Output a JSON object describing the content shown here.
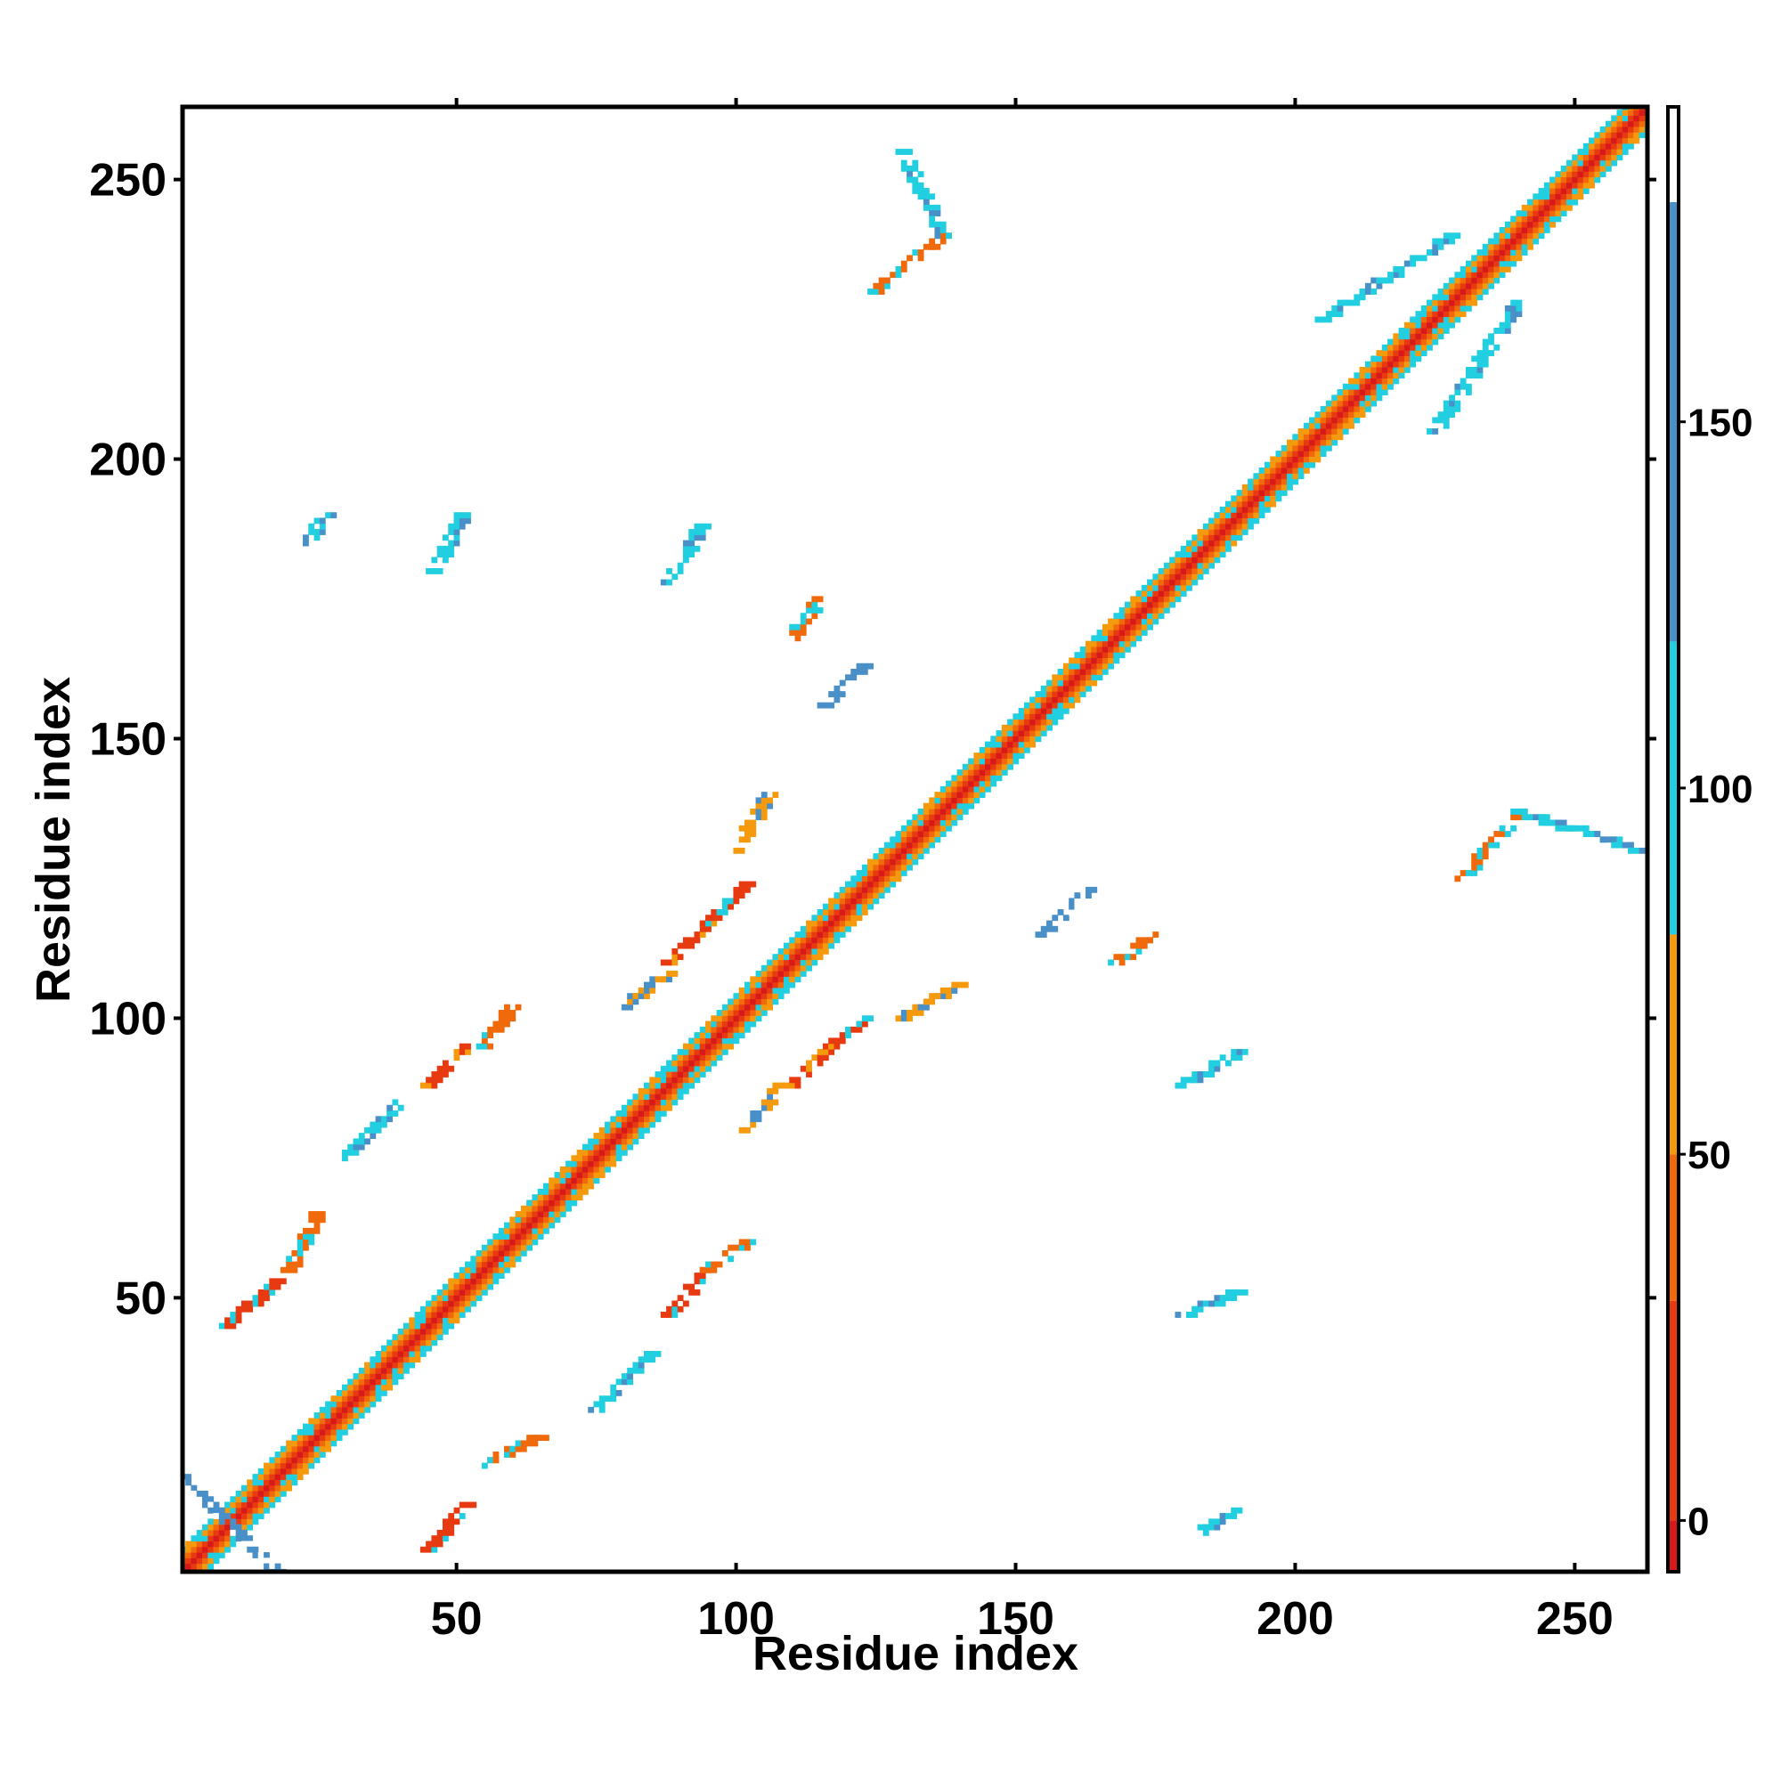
{
  "chart_data": {
    "type": "heatmap",
    "title": "",
    "xlabel": "Residue index",
    "ylabel": "Residue index",
    "xlim": [
      1,
      263
    ],
    "ylim": [
      1,
      263
    ],
    "xticks": [
      50,
      100,
      150,
      200,
      250
    ],
    "yticks": [
      50,
      100,
      150,
      200,
      250
    ],
    "grid": false,
    "legend": "none",
    "colorbar": {
      "range": [
        -7,
        193
      ],
      "ticks": [
        0,
        50,
        100,
        150
      ],
      "bands": [
        {
          "from": -7,
          "to": 0,
          "color": "#d7191c"
        },
        {
          "from": 0,
          "to": 30,
          "color": "#e83a10"
        },
        {
          "from": 30,
          "to": 50,
          "color": "#f06a0b"
        },
        {
          "from": 50,
          "to": 80,
          "color": "#f49a0c"
        },
        {
          "from": 80,
          "to": 120,
          "color": "#22cfe0"
        },
        {
          "from": 120,
          "to": 180,
          "color": "#4a90c8"
        },
        {
          "from": 180,
          "to": 193,
          "color": "#ffffff"
        }
      ]
    },
    "description_cells": {
      "diagonal_band_halfwidth": 4,
      "off_diagonal_segments": [
        {
          "x1": 45,
          "y1": 5,
          "x2": 52,
          "y2": 13,
          "value": 20
        },
        {
          "x1": 55,
          "y1": 20,
          "x2": 65,
          "y2": 25,
          "value": 35
        },
        {
          "x1": 9,
          "y1": 45,
          "x2": 18,
          "y2": 53,
          "value": 20
        },
        {
          "x1": 20,
          "y1": 55,
          "x2": 25,
          "y2": 65,
          "value": 40
        },
        {
          "x1": 88,
          "y1": 47,
          "x2": 95,
          "y2": 55,
          "value": 20
        },
        {
          "x1": 95,
          "y1": 55,
          "x2": 102,
          "y2": 60,
          "value": 40
        },
        {
          "x1": 45,
          "y1": 88,
          "x2": 52,
          "y2": 95,
          "value": 15
        },
        {
          "x1": 55,
          "y1": 95,
          "x2": 60,
          "y2": 102,
          "value": 40
        },
        {
          "x1": 88,
          "y1": 110,
          "x2": 95,
          "y2": 117,
          "value": 15
        },
        {
          "x1": 95,
          "y1": 117,
          "x2": 102,
          "y2": 124,
          "value": 20
        },
        {
          "x1": 110,
          "y1": 88,
          "x2": 117,
          "y2": 95,
          "value": 15
        },
        {
          "x1": 117,
          "y1": 95,
          "x2": 124,
          "y2": 100,
          "value": 20
        },
        {
          "x1": 110,
          "y1": 168,
          "x2": 115,
          "y2": 175,
          "value": 35
        },
        {
          "x1": 115,
          "y1": 155,
          "x2": 123,
          "y2": 163,
          "value": 140
        },
        {
          "x1": 155,
          "y1": 115,
          "x2": 163,
          "y2": 123,
          "value": 140
        },
        {
          "x1": 168,
          "y1": 110,
          "x2": 175,
          "y2": 115,
          "value": 35
        },
        {
          "x1": 1,
          "y1": 18,
          "x2": 18,
          "y2": 1,
          "value": 140
        },
        {
          "x1": 230,
          "y1": 125,
          "x2": 240,
          "y2": 137,
          "value": 40
        },
        {
          "x1": 240,
          "y1": 137,
          "x2": 262,
          "y2": 130,
          "value": 100
        },
        {
          "x1": 125,
          "y1": 230,
          "x2": 137,
          "y2": 240,
          "value": 40
        },
        {
          "x1": 130,
          "y1": 255,
          "x2": 137,
          "y2": 240,
          "value": 100
        },
        {
          "x1": 23,
          "y1": 185,
          "x2": 27,
          "y2": 190,
          "value": 100
        },
        {
          "x1": 46,
          "y1": 180,
          "x2": 51,
          "y2": 190,
          "value": 100
        },
        {
          "x1": 88,
          "y1": 178,
          "x2": 94,
          "y2": 188,
          "value": 100
        },
        {
          "x1": 180,
          "y1": 88,
          "x2": 190,
          "y2": 94,
          "value": 100
        },
        {
          "x1": 180,
          "y1": 47,
          "x2": 190,
          "y2": 51,
          "value": 100
        },
        {
          "x1": 183,
          "y1": 8,
          "x2": 189,
          "y2": 12,
          "value": 100
        },
        {
          "x1": 30,
          "y1": 75,
          "x2": 40,
          "y2": 85,
          "value": 100
        },
        {
          "x1": 75,
          "y1": 30,
          "x2": 85,
          "y2": 40,
          "value": 100
        },
        {
          "x1": 100,
          "y1": 130,
          "x2": 106,
          "y2": 140,
          "value": 60
        },
        {
          "x1": 130,
          "y1": 100,
          "x2": 140,
          "y2": 106,
          "value": 60
        },
        {
          "x1": 80,
          "y1": 102,
          "x2": 88,
          "y2": 108,
          "value": 70
        },
        {
          "x1": 102,
          "y1": 80,
          "x2": 108,
          "y2": 88,
          "value": 70
        },
        {
          "x1": 205,
          "y1": 225,
          "x2": 228,
          "y2": 240,
          "value": 100
        },
        {
          "x1": 225,
          "y1": 205,
          "x2": 240,
          "y2": 228,
          "value": 100
        }
      ]
    }
  }
}
